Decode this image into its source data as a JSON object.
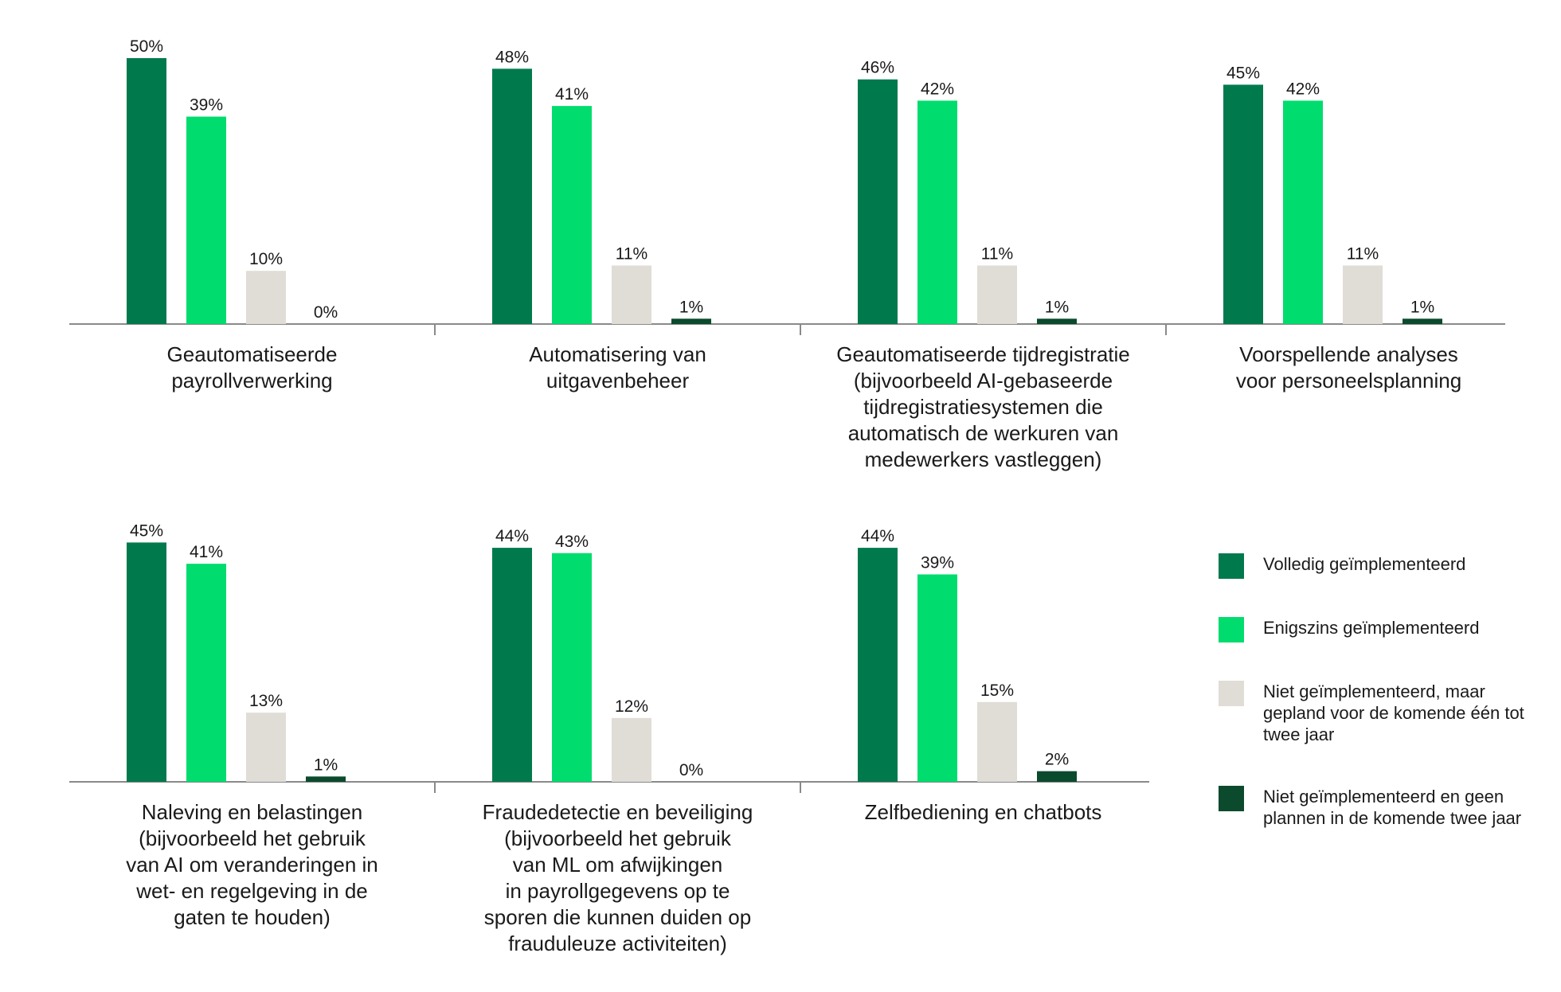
{
  "colors": {
    "fully": "#007a4d",
    "partly": "#00dc6e",
    "planned": "#e0ddd7",
    "none": "#0b4a2c",
    "axis": "#8a8a8a",
    "text": "#1a1a1a"
  },
  "legend": {
    "items": [
      {
        "key": "fully",
        "label": "Volledig geïmplementeerd",
        "color": "#007a4d"
      },
      {
        "key": "partly",
        "label": "Enigszins geïmplementeerd",
        "color": "#00dc6e"
      },
      {
        "key": "planned",
        "label": "Niet geïmplementeerd, maar gepland voor de komende één tot twee jaar",
        "color": "#e0ddd7"
      },
      {
        "key": "none",
        "label": "Niet geïmplementeerd en geen plannen in de komende twee jaar",
        "color": "#0b4a2c"
      }
    ]
  },
  "chart_data": {
    "type": "bar",
    "unit": "%",
    "ylim": [
      0,
      50
    ],
    "grid": false,
    "legend_position": "bottom-right",
    "series": [
      {
        "name": "Volledig geïmplementeerd",
        "color": "#007a4d"
      },
      {
        "name": "Enigszins geïmplementeerd",
        "color": "#00dc6e"
      },
      {
        "name": "Niet geïmplementeerd, maar gepland voor de komende één tot twee jaar",
        "color": "#e0ddd7"
      },
      {
        "name": "Niet geïmplementeerd en geen plannen in de komende twee jaar",
        "color": "#0b4a2c"
      }
    ],
    "rows": [
      {
        "panels": [
          {
            "category_lines": [
              "Geautomatiseerde",
              "payrollverwerking"
            ],
            "values": [
              50,
              39,
              10,
              0
            ],
            "labels": [
              "50%",
              "39%",
              "10%",
              "0%"
            ]
          },
          {
            "category_lines": [
              "Automatisering van",
              "uitgavenbeheer"
            ],
            "values": [
              48,
              41,
              11,
              1
            ],
            "labels": [
              "48%",
              "41%",
              "11%",
              "1%"
            ]
          },
          {
            "category_lines": [
              "Geautomatiseerde tijdregistratie",
              "(bijvoorbeeld AI-gebaseerde",
              "tijdregistratiesystemen die",
              "automatisch de werkuren van",
              "medewerkers vastleggen)"
            ],
            "values": [
              46,
              42,
              11,
              1
            ],
            "labels": [
              "46%",
              "42%",
              "11%",
              "1%"
            ]
          },
          {
            "category_lines": [
              "Voorspellende analyses",
              "voor personeelsplanning"
            ],
            "values": [
              45,
              42,
              11,
              1
            ],
            "labels": [
              "45%",
              "42%",
              "11%",
              "1%"
            ]
          }
        ]
      },
      {
        "panels": [
          {
            "category_lines": [
              "Naleving en belastingen",
              "(bijvoorbeeld het gebruik",
              "van AI om veranderingen in",
              "wet- en regelgeving in de",
              "gaten te houden)"
            ],
            "values": [
              45,
              41,
              13,
              1
            ],
            "labels": [
              "45%",
              "41%",
              "13%",
              "1%"
            ]
          },
          {
            "category_lines": [
              "Fraudedetectie en beveiliging",
              "(bijvoorbeeld het gebruik",
              "van ML om afwijkingen",
              "in payrollgegevens op te",
              "sporen die kunnen duiden op",
              "frauduleuze activiteiten)"
            ],
            "values": [
              44,
              43,
              12,
              0
            ],
            "labels": [
              "44%",
              "43%",
              "12%",
              "0%"
            ]
          },
          {
            "category_lines": [
              "Zelfbediening en chatbots"
            ],
            "values": [
              44,
              39,
              15,
              2
            ],
            "labels": [
              "44%",
              "39%",
              "15%",
              "2%"
            ]
          }
        ]
      }
    ]
  }
}
